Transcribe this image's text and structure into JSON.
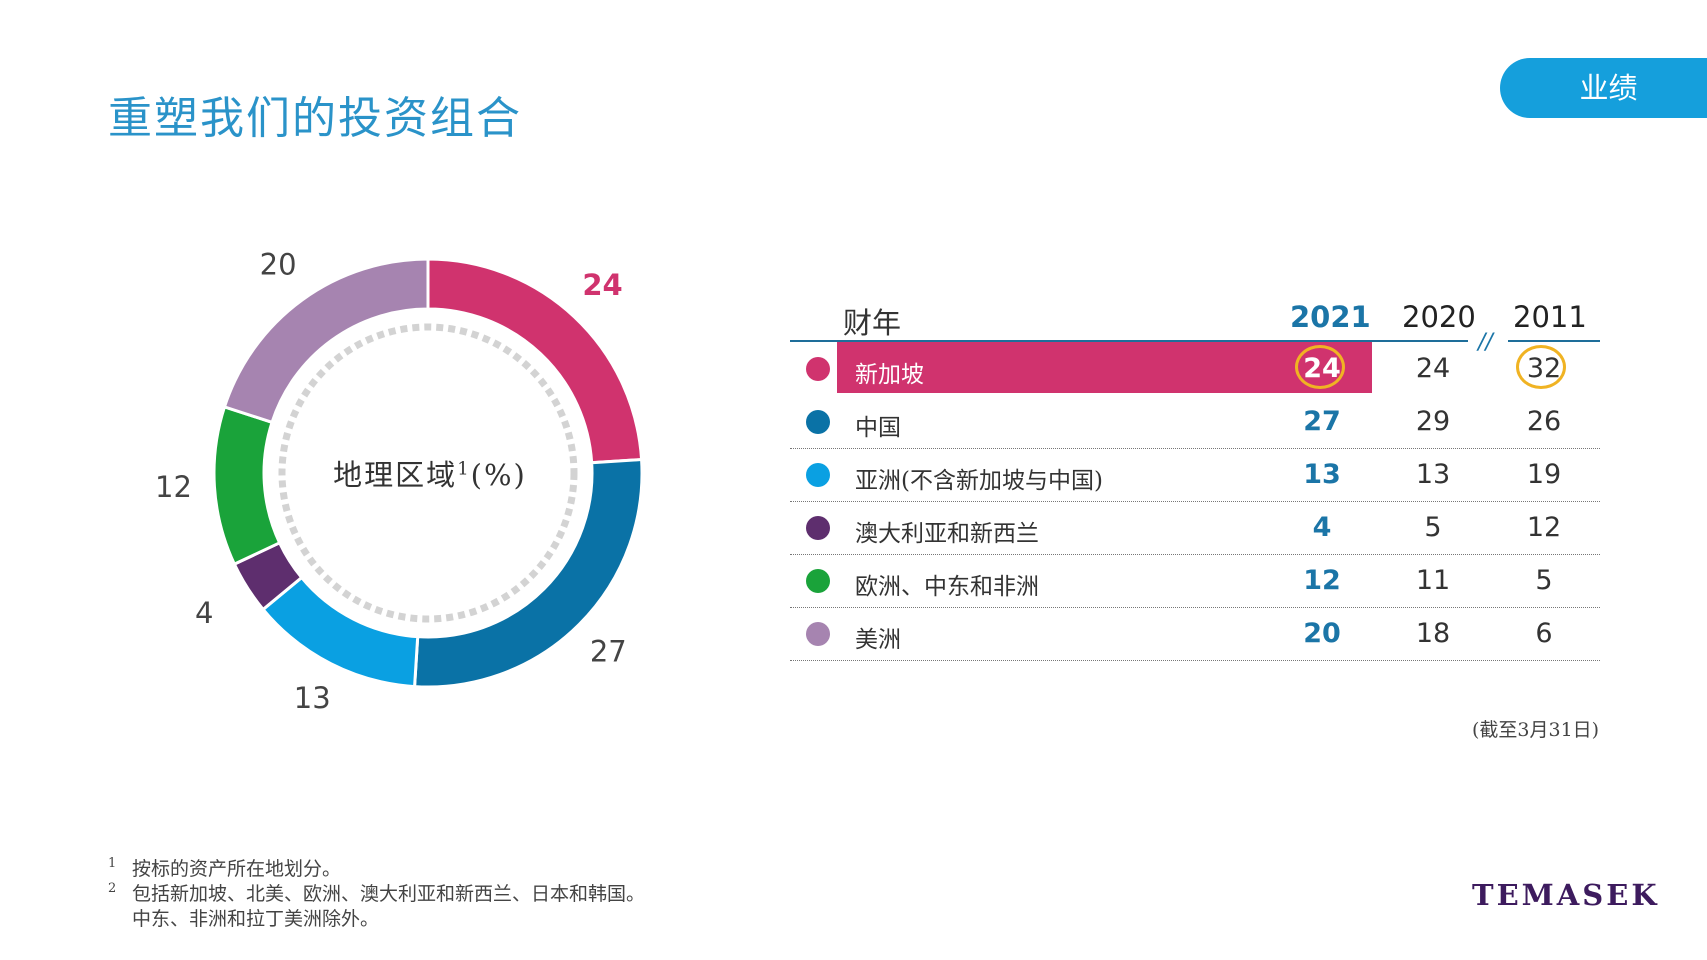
{
  "header": {
    "title": "重塑我们的投资组合",
    "section_tab": "业绩"
  },
  "chart_data": {
    "type": "pie",
    "center_label": "地理区域",
    "center_label_sup": "1",
    "center_label_unit": "(%)",
    "slices": [
      {
        "name": "新加坡",
        "value": 24,
        "color": "#d0336e",
        "label_color": "#d0336e",
        "label_bold": true
      },
      {
        "name": "中国",
        "value": 27,
        "color": "#0a72a6",
        "label_color": "#444444",
        "label_bold": false
      },
      {
        "name": "亚洲(不含新加坡与中国)",
        "value": 13,
        "color": "#0aa0e2",
        "label_color": "#444444",
        "label_bold": false
      },
      {
        "name": "澳大利亚和新西兰",
        "value": 4,
        "color": "#5e2e6e",
        "label_color": "#444444",
        "label_bold": false
      },
      {
        "name": "欧洲、中东和非洲",
        "value": 12,
        "color": "#1aa33a",
        "label_color": "#444444",
        "label_bold": false
      },
      {
        "name": "美洲",
        "value": 20,
        "color": "#a684b0",
        "label_color": "#444444",
        "label_bold": false
      }
    ]
  },
  "table": {
    "header_label": "财年",
    "years": [
      "2021",
      "2020",
      "2011"
    ],
    "break_mark": "//",
    "rows": [
      {
        "label": "新加坡",
        "color": "#d0336e",
        "v2021": "24",
        "v2020": "24",
        "v2011": "32"
      },
      {
        "label": "中国",
        "color": "#0a72a6",
        "v2021": "27",
        "v2020": "29",
        "v2011": "26"
      },
      {
        "label": "亚洲(不含新加坡与中国)",
        "color": "#0aa0e2",
        "v2021": "13",
        "v2020": "13",
        "v2011": "19"
      },
      {
        "label": "澳大利亚和新西兰",
        "color": "#5e2e6e",
        "v2021": "4",
        "v2020": "5",
        "v2011": "12"
      },
      {
        "label": "欧洲、中东和非洲",
        "color": "#1aa33a",
        "v2021": "12",
        "v2020": "11",
        "v2011": "5"
      },
      {
        "label": "美洲",
        "color": "#a684b0",
        "v2021": "20",
        "v2020": "18",
        "v2011": "6"
      }
    ]
  },
  "notes": {
    "as_of": "(截至3月31日)",
    "footnote1_num": "1",
    "footnote1": "按标的资产所在地划分。",
    "footnote2_num": "2",
    "footnote2_line1": "包括新加坡、北美、欧洲、澳大利亚和新西兰、日本和韩国。",
    "footnote2_line2": "中东、非洲和拉丁美洲除外。"
  },
  "brand": {
    "logo_text": "TEMASEK",
    "accent": "#159fdc"
  }
}
